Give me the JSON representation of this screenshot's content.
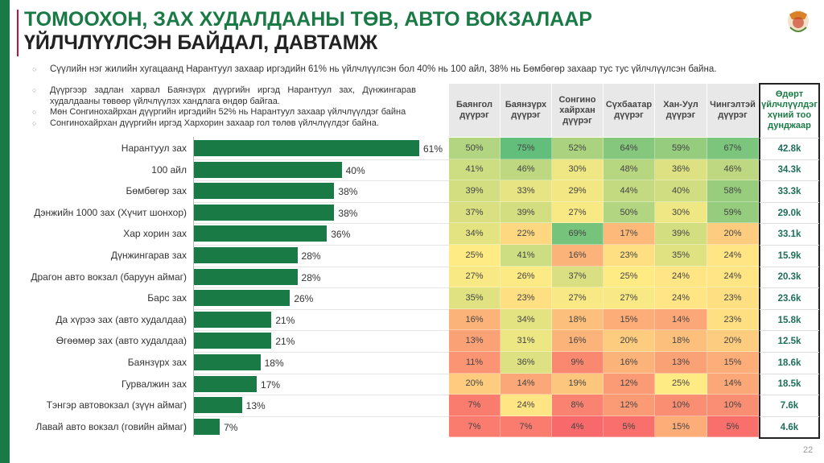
{
  "title": {
    "line1": "ТОМООХОН, ЗАХ ХУДАЛДААНЫ ТӨВ, АВТО ВОКЗАЛААР",
    "line2": "ҮЙЛЧЛҮҮЛСЭН БАЙДАЛ, ДАВТАМЖ"
  },
  "bullets": [
    "Сүүлийн нэг жилийн хугацаанд Нарантуул захаар иргэдийн 61% нь үйлчлүүлсэн бол 40% нь 100 айл, 38% нь Бөмбөгөр захаар тус тус үйлчлүүлсэн байна.",
    "Дүүргээр задлан харвал Баянзүрх дүүргийн иргэд Нарантуул зах, Дүнжингарав худалдааны төвөөр үйлчлүүлэх хандлага өндөр байгаа.",
    "Мөн Сонгинохайрхан дүүргийн иргэдийн 52% нь Нарантуул захаар үйлчлүүлдэг байна",
    "Сонгинохайрхан дүүргийн иргэд Хархорин захаар гол төлөв үйлчлүүлдэг байна."
  ],
  "bullet_marker": "○",
  "page_number": "22",
  "colors": {
    "brand_green": "#1a7a45",
    "accent_red": "#c0143c",
    "heat_low": "#f8696b",
    "heat_mid": "#ffeb84",
    "heat_high": "#63be7b"
  },
  "chart_data": {
    "type": "bar",
    "categories": [
      "Нарантуул зах",
      "100 айл",
      "Бөмбөгөр зах",
      "Дэнжийн 1000 зах (Хүчит шонхор)",
      "Хар хорин зах",
      "Дүнжингарав зах",
      "Драгон авто вокзал (баруун аймаг)",
      "Барс зах",
      "Да хүрээ зах (авто худалдаа)",
      "Өгөөмөр зах (авто худалдаа)",
      "Баянзүрх зах",
      "Гурвалжин зах",
      "Тэнгэр автовокзал (зүүн аймаг)",
      "Лавай авто вокзал (говийн аймаг)"
    ],
    "values": [
      61,
      40,
      38,
      38,
      36,
      28,
      28,
      26,
      21,
      21,
      18,
      17,
      13,
      7
    ],
    "labels": [
      "61%",
      "40%",
      "38%",
      "38%",
      "36%",
      "28%",
      "28%",
      "26%",
      "21%",
      "21%",
      "18%",
      "17%",
      "13%",
      "7%"
    ]
  },
  "table": {
    "headers": [
      "Баянгол дүүрэг",
      "Баянзүрх дүүрэг",
      "Сонгино хайрхан дүүрэг",
      "Сүхбаатар дүүрэг",
      "Хан-Уул дүүрэг",
      "Чингэлтэй дүүрэг"
    ],
    "last_header": "Өдөрт үйлчлүүлдэг хүний тоо дунджаар",
    "rows": [
      {
        "cells": [
          "50%",
          "75%",
          "52%",
          "64%",
          "59%",
          "67%"
        ],
        "daily": "42.8k"
      },
      {
        "cells": [
          "41%",
          "46%",
          "30%",
          "48%",
          "36%",
          "46%"
        ],
        "daily": "34.3k"
      },
      {
        "cells": [
          "39%",
          "33%",
          "29%",
          "44%",
          "40%",
          "58%"
        ],
        "daily": "33.3k"
      },
      {
        "cells": [
          "37%",
          "39%",
          "27%",
          "50%",
          "30%",
          "59%"
        ],
        "daily": "29.0k"
      },
      {
        "cells": [
          "34%",
          "22%",
          "69%",
          "17%",
          "39%",
          "20%"
        ],
        "daily": "33.1k"
      },
      {
        "cells": [
          "25%",
          "41%",
          "16%",
          "23%",
          "35%",
          "24%"
        ],
        "daily": "15.9k"
      },
      {
        "cells": [
          "27%",
          "26%",
          "37%",
          "25%",
          "24%",
          "24%"
        ],
        "daily": "20.3k"
      },
      {
        "cells": [
          "35%",
          "23%",
          "27%",
          "27%",
          "24%",
          "23%"
        ],
        "daily": "23.6k"
      },
      {
        "cells": [
          "16%",
          "34%",
          "18%",
          "15%",
          "14%",
          "23%"
        ],
        "daily": "15.8k"
      },
      {
        "cells": [
          "13%",
          "31%",
          "16%",
          "20%",
          "18%",
          "20%"
        ],
        "daily": "12.5k"
      },
      {
        "cells": [
          "11%",
          "36%",
          "9%",
          "16%",
          "13%",
          "15%"
        ],
        "daily": "18.6k"
      },
      {
        "cells": [
          "20%",
          "14%",
          "19%",
          "12%",
          "25%",
          "14%"
        ],
        "daily": "18.5k"
      },
      {
        "cells": [
          "7%",
          "24%",
          "8%",
          "12%",
          "10%",
          "10%"
        ],
        "daily": "7.6k"
      },
      {
        "cells": [
          "7%",
          "7%",
          "4%",
          "5%",
          "15%",
          "5%"
        ],
        "daily": "4.6k"
      }
    ]
  }
}
